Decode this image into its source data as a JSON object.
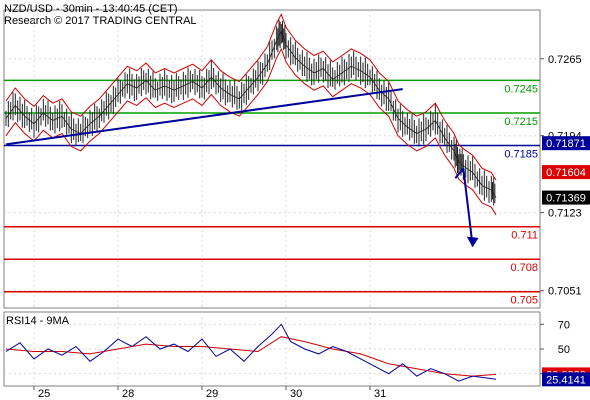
{
  "chart_data": {
    "type": "candlestick",
    "header": {
      "line1": "NZD/USD - 30min - 13:40:45 (CET)",
      "line2": "Research © 2017 TRADING CENTRAL"
    },
    "price_axis": {
      "ylim": [
        0.7035,
        0.731
      ],
      "ticks": [
        "0.7265",
        "0.7194",
        "0.7123",
        "0.7051"
      ],
      "tick_values": [
        0.7265,
        0.7194,
        0.7123,
        0.7051
      ]
    },
    "x_axis": {
      "labels": [
        "25",
        "28",
        "29",
        "30",
        "31"
      ],
      "label_positions": [
        0.06,
        0.24,
        0.42,
        0.6,
        0.78
      ]
    },
    "levels": [
      {
        "label": "0.7245",
        "value": 0.7245,
        "color": "#00a000",
        "kind": "resistance"
      },
      {
        "label": "0.7215",
        "value": 0.7215,
        "color": "#00a000",
        "kind": "resistance"
      },
      {
        "label": "0.7185",
        "value": 0.7185,
        "color": "#00009a",
        "kind": "pivot"
      },
      {
        "label": "0.711",
        "value": 0.711,
        "color": "#dd0000",
        "kind": "support"
      },
      {
        "label": "0.708",
        "value": 0.708,
        "color": "#dd0000",
        "kind": "support"
      },
      {
        "label": "0.705",
        "value": 0.705,
        "color": "#dd0000",
        "kind": "support"
      }
    ],
    "price_tags": [
      {
        "label": "0.71871",
        "value": 0.71871,
        "bg": "#00009a",
        "fg": "#ffffff"
      },
      {
        "label": "0.71604",
        "value": 0.71604,
        "bg": "#dd0000",
        "fg": "#ffffff"
      },
      {
        "label": "0.71369",
        "value": 0.71369,
        "bg": "#000000",
        "fg": "#ffffff"
      }
    ],
    "trendline": {
      "from": [
        0.0,
        0.7186
      ],
      "to": [
        0.85,
        0.7237
      ],
      "color": "#00009a"
    },
    "forecast_arrow": {
      "from": [
        0.98,
        0.7164
      ],
      "to": [
        1.0,
        0.7092
      ],
      "color": "#00009a"
    },
    "ohlc_close_path": [
      [
        0.0,
        0.721
      ],
      [
        0.02,
        0.7222
      ],
      [
        0.04,
        0.7212
      ],
      [
        0.06,
        0.7205
      ],
      [
        0.08,
        0.7215
      ],
      [
        0.1,
        0.7208
      ],
      [
        0.12,
        0.7212
      ],
      [
        0.14,
        0.72
      ],
      [
        0.16,
        0.7196
      ],
      [
        0.18,
        0.7205
      ],
      [
        0.2,
        0.7212
      ],
      [
        0.22,
        0.7222
      ],
      [
        0.24,
        0.7232
      ],
      [
        0.26,
        0.7242
      ],
      [
        0.28,
        0.7238
      ],
      [
        0.3,
        0.7245
      ],
      [
        0.32,
        0.7236
      ],
      [
        0.34,
        0.724
      ],
      [
        0.36,
        0.7236
      ],
      [
        0.38,
        0.724
      ],
      [
        0.4,
        0.7244
      ],
      [
        0.42,
        0.7238
      ],
      [
        0.44,
        0.7248
      ],
      [
        0.46,
        0.7238
      ],
      [
        0.48,
        0.7232
      ],
      [
        0.5,
        0.7228
      ],
      [
        0.52,
        0.7238
      ],
      [
        0.54,
        0.7248
      ],
      [
        0.56,
        0.726
      ],
      [
        0.58,
        0.7282
      ],
      [
        0.59,
        0.729
      ],
      [
        0.6,
        0.7278
      ],
      [
        0.62,
        0.7266
      ],
      [
        0.64,
        0.7258
      ],
      [
        0.66,
        0.7252
      ],
      [
        0.68,
        0.7256
      ],
      [
        0.7,
        0.7246
      ],
      [
        0.72,
        0.7252
      ],
      [
        0.74,
        0.7258
      ],
      [
        0.76,
        0.7254
      ],
      [
        0.78,
        0.7248
      ],
      [
        0.8,
        0.7236
      ],
      [
        0.82,
        0.7228
      ],
      [
        0.84,
        0.721
      ],
      [
        0.86,
        0.7202
      ],
      [
        0.88,
        0.7196
      ],
      [
        0.9,
        0.72
      ],
      [
        0.92,
        0.7208
      ],
      [
        0.94,
        0.7192
      ],
      [
        0.96,
        0.718
      ],
      [
        0.97,
        0.717
      ],
      [
        0.98,
        0.7166
      ],
      [
        1.0,
        0.716
      ],
      [
        1.02,
        0.7148
      ],
      [
        1.04,
        0.7144
      ],
      [
        1.05,
        0.7137
      ]
    ],
    "rsi": {
      "label": "RSI14 - 9MA",
      "ylim": [
        20,
        80
      ],
      "ticks": [
        "70",
        "50",
        "30"
      ],
      "tick_values": [
        70,
        50,
        30
      ],
      "tags": [
        {
          "label": "29.3883",
          "value": 29.3883,
          "bg": "#dd0000",
          "fg": "#ffffff"
        },
        {
          "label": "25.4141",
          "value": 25.4141,
          "bg": "#00009a",
          "fg": "#ffffff"
        }
      ],
      "rsi_path": [
        [
          0.0,
          48
        ],
        [
          0.03,
          55
        ],
        [
          0.06,
          42
        ],
        [
          0.09,
          50
        ],
        [
          0.12,
          45
        ],
        [
          0.15,
          52
        ],
        [
          0.18,
          40
        ],
        [
          0.21,
          48
        ],
        [
          0.24,
          58
        ],
        [
          0.27,
          52
        ],
        [
          0.3,
          60
        ],
        [
          0.33,
          50
        ],
        [
          0.36,
          54
        ],
        [
          0.39,
          48
        ],
        [
          0.42,
          58
        ],
        [
          0.45,
          44
        ],
        [
          0.48,
          50
        ],
        [
          0.51,
          40
        ],
        [
          0.54,
          52
        ],
        [
          0.57,
          62
        ],
        [
          0.59,
          70
        ],
        [
          0.61,
          56
        ],
        [
          0.64,
          50
        ],
        [
          0.67,
          46
        ],
        [
          0.7,
          52
        ],
        [
          0.73,
          48
        ],
        [
          0.76,
          42
        ],
        [
          0.79,
          36
        ],
        [
          0.82,
          30
        ],
        [
          0.85,
          38
        ],
        [
          0.88,
          28
        ],
        [
          0.91,
          34
        ],
        [
          0.94,
          30
        ],
        [
          0.97,
          24
        ],
        [
          1.0,
          28
        ],
        [
          1.05,
          25.4
        ]
      ],
      "ma_path": [
        [
          0.0,
          50
        ],
        [
          0.06,
          48
        ],
        [
          0.12,
          48
        ],
        [
          0.18,
          46
        ],
        [
          0.24,
          50
        ],
        [
          0.3,
          54
        ],
        [
          0.36,
          52
        ],
        [
          0.42,
          52
        ],
        [
          0.48,
          50
        ],
        [
          0.54,
          48
        ],
        [
          0.59,
          60
        ],
        [
          0.64,
          56
        ],
        [
          0.7,
          50
        ],
        [
          0.76,
          46
        ],
        [
          0.82,
          38
        ],
        [
          0.88,
          34
        ],
        [
          0.94,
          30
        ],
        [
          1.0,
          28
        ],
        [
          1.05,
          29.4
        ]
      ]
    }
  }
}
